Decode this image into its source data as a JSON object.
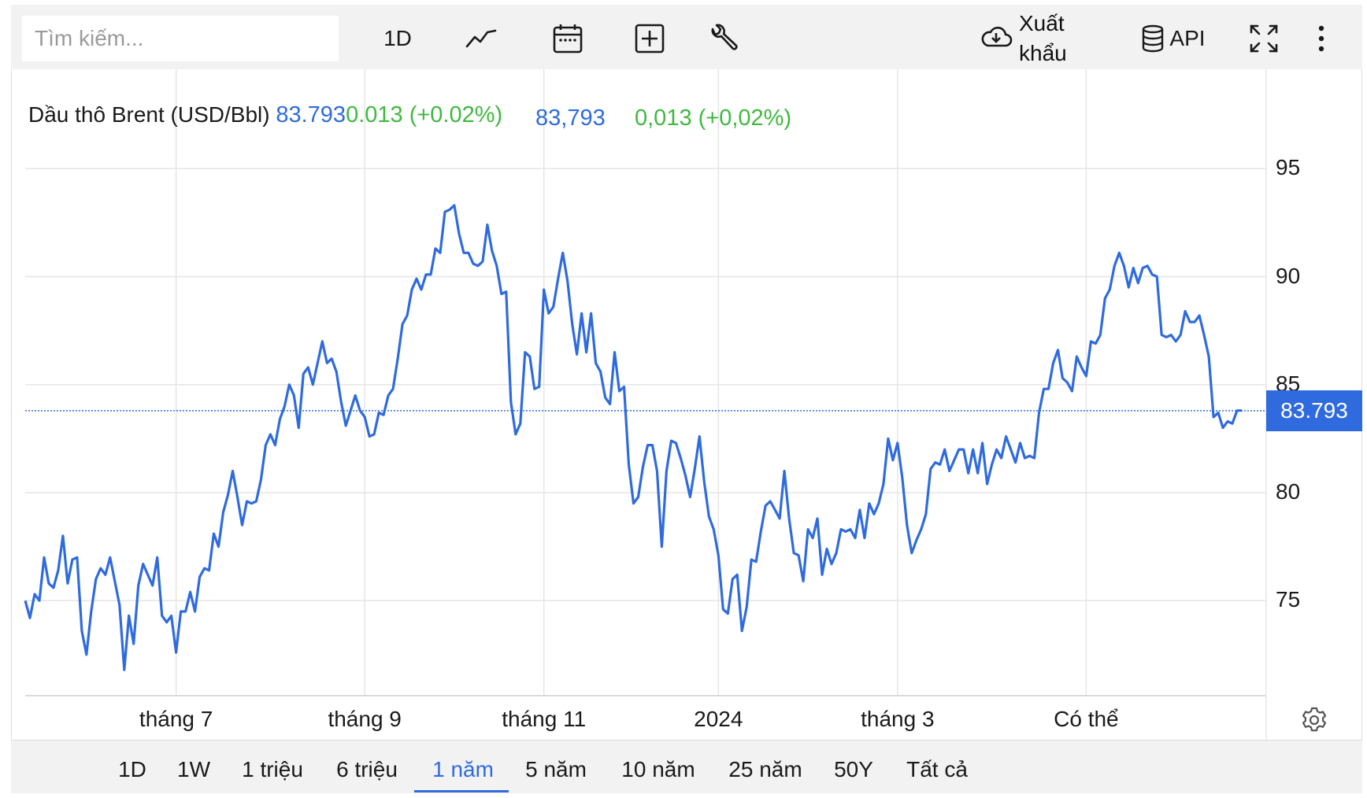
{
  "toolbar": {
    "search_placeholder": "Tìm kiếm...",
    "interval_label": "1D",
    "export_label": "Xuất khẩu",
    "api_label": "API"
  },
  "legend": {
    "name": "Dầu thô Brent (USD/Bbl)",
    "price_dot": "83.793",
    "change_dot": "0.013 (+0.02%)",
    "price_comma": "83,793",
    "change_comma": "0,013 (+0,02%)"
  },
  "price_tag": "83.793",
  "ranges": [
    "1D",
    "1W",
    "1 triệu",
    "6 triệu",
    "1 năm",
    "5 năm",
    "10 năm",
    "25 năm",
    "50Y",
    "Tất cả"
  ],
  "active_range": "1 năm",
  "colors": {
    "line": "#2f6bde",
    "positive": "#3fb93f",
    "grid": "#e5e5e5"
  },
  "icons": [
    "line-chart-icon",
    "calendar-icon",
    "add-square-icon",
    "wrench-icon",
    "cloud-download-icon",
    "database-icon",
    "fullscreen-icon",
    "more-vertical-icon",
    "settings-gear-icon"
  ],
  "chart_data": {
    "type": "line",
    "title": "Dầu thô Brent (USD/Bbl)",
    "xlabel": "",
    "ylabel": "",
    "ylim": [
      70.6,
      99.6
    ],
    "yticks": [
      75,
      80,
      85,
      90,
      95
    ],
    "x_tick_labels": [
      "tháng 7",
      "tháng 9",
      "tháng 11",
      "2024",
      "tháng 3",
      "Có thể"
    ],
    "x_tick_index": [
      32,
      72,
      110,
      147,
      185,
      225
    ],
    "last_value": 83.793,
    "grid": true,
    "series": [
      {
        "values": [
          75.0,
          74.2,
          75.3,
          75.0,
          77.0,
          75.8,
          75.6,
          76.4,
          78.0,
          75.8,
          76.9,
          77.0,
          73.6,
          72.5,
          74.5,
          76.0,
          76.5,
          76.2,
          77.0,
          75.9,
          74.8,
          71.8,
          74.3,
          73.0,
          75.7,
          76.7,
          76.2,
          75.7,
          77.0,
          74.3,
          74.0,
          74.3,
          72.6,
          74.5,
          74.5,
          75.4,
          74.5,
          76.1,
          76.5,
          76.4,
          78.1,
          77.5,
          79.1,
          79.9,
          81.0,
          79.8,
          78.5,
          79.6,
          79.5,
          79.6,
          80.6,
          82.2,
          82.7,
          82.2,
          83.4,
          84.0,
          85.0,
          84.5,
          83.0,
          85.5,
          85.8,
          85.0,
          86.0,
          87.0,
          86.0,
          86.2,
          85.6,
          84.2,
          83.1,
          83.8,
          84.5,
          83.8,
          83.5,
          82.6,
          82.7,
          83.7,
          83.6,
          84.5,
          84.8,
          86.2,
          87.8,
          88.2,
          89.4,
          89.9,
          89.4,
          90.1,
          90.1,
          91.3,
          91.1,
          93.0,
          93.1,
          93.3,
          92.0,
          91.1,
          91.1,
          90.6,
          90.5,
          90.7,
          92.4,
          91.2,
          90.5,
          89.2,
          89.3,
          84.2,
          82.7,
          83.2,
          86.5,
          86.3,
          84.8,
          84.9,
          89.4,
          88.3,
          88.6,
          89.9,
          91.1,
          89.8,
          87.8,
          86.4,
          88.3,
          86.5,
          88.3,
          86.0,
          85.6,
          84.4,
          84.1,
          86.5,
          84.7,
          84.9,
          81.3,
          79.5,
          79.8,
          81.2,
          82.2,
          82.2,
          81.0,
          77.5,
          81.0,
          82.4,
          82.3,
          81.6,
          80.8,
          79.8,
          81.1,
          82.6,
          80.5,
          78.9,
          78.3,
          77.1,
          74.6,
          74.4,
          76.0,
          76.2,
          73.6,
          74.7,
          76.9,
          76.8,
          78.2,
          79.4,
          79.6,
          79.2,
          78.8,
          81.0,
          78.8,
          77.2,
          77.1,
          75.9,
          78.3,
          77.9,
          78.8,
          76.2,
          77.4,
          76.7,
          77.2,
          78.3,
          78.2,
          78.3,
          77.9,
          79.2,
          77.9,
          79.5,
          79.0,
          79.5,
          80.4,
          82.5,
          81.5,
          82.3,
          80.7,
          78.5,
          77.2,
          77.8,
          78.3,
          79.0,
          81.1,
          81.4,
          81.3,
          82.0,
          81.0,
          81.5,
          82.0,
          82.0,
          80.9,
          82.0,
          80.9,
          82.3,
          80.4,
          81.3,
          82.0,
          81.6,
          82.6,
          82.0,
          81.4,
          82.3,
          81.6,
          81.7,
          81.6,
          83.7,
          84.8,
          84.8,
          86.0,
          86.6,
          85.3,
          85.1,
          84.7,
          86.3,
          85.8,
          85.4,
          87.0,
          86.9,
          87.3,
          89.0,
          89.4,
          90.5,
          91.1,
          90.5,
          89.5,
          90.4,
          89.7,
          90.4,
          90.5,
          90.1,
          90.0,
          87.3,
          87.2,
          87.3,
          87.0,
          87.3,
          88.4,
          87.9,
          87.9,
          88.2,
          87.3,
          86.3,
          83.5,
          83.7,
          83.0,
          83.3,
          83.2,
          83.8,
          83.8
        ]
      }
    ]
  }
}
